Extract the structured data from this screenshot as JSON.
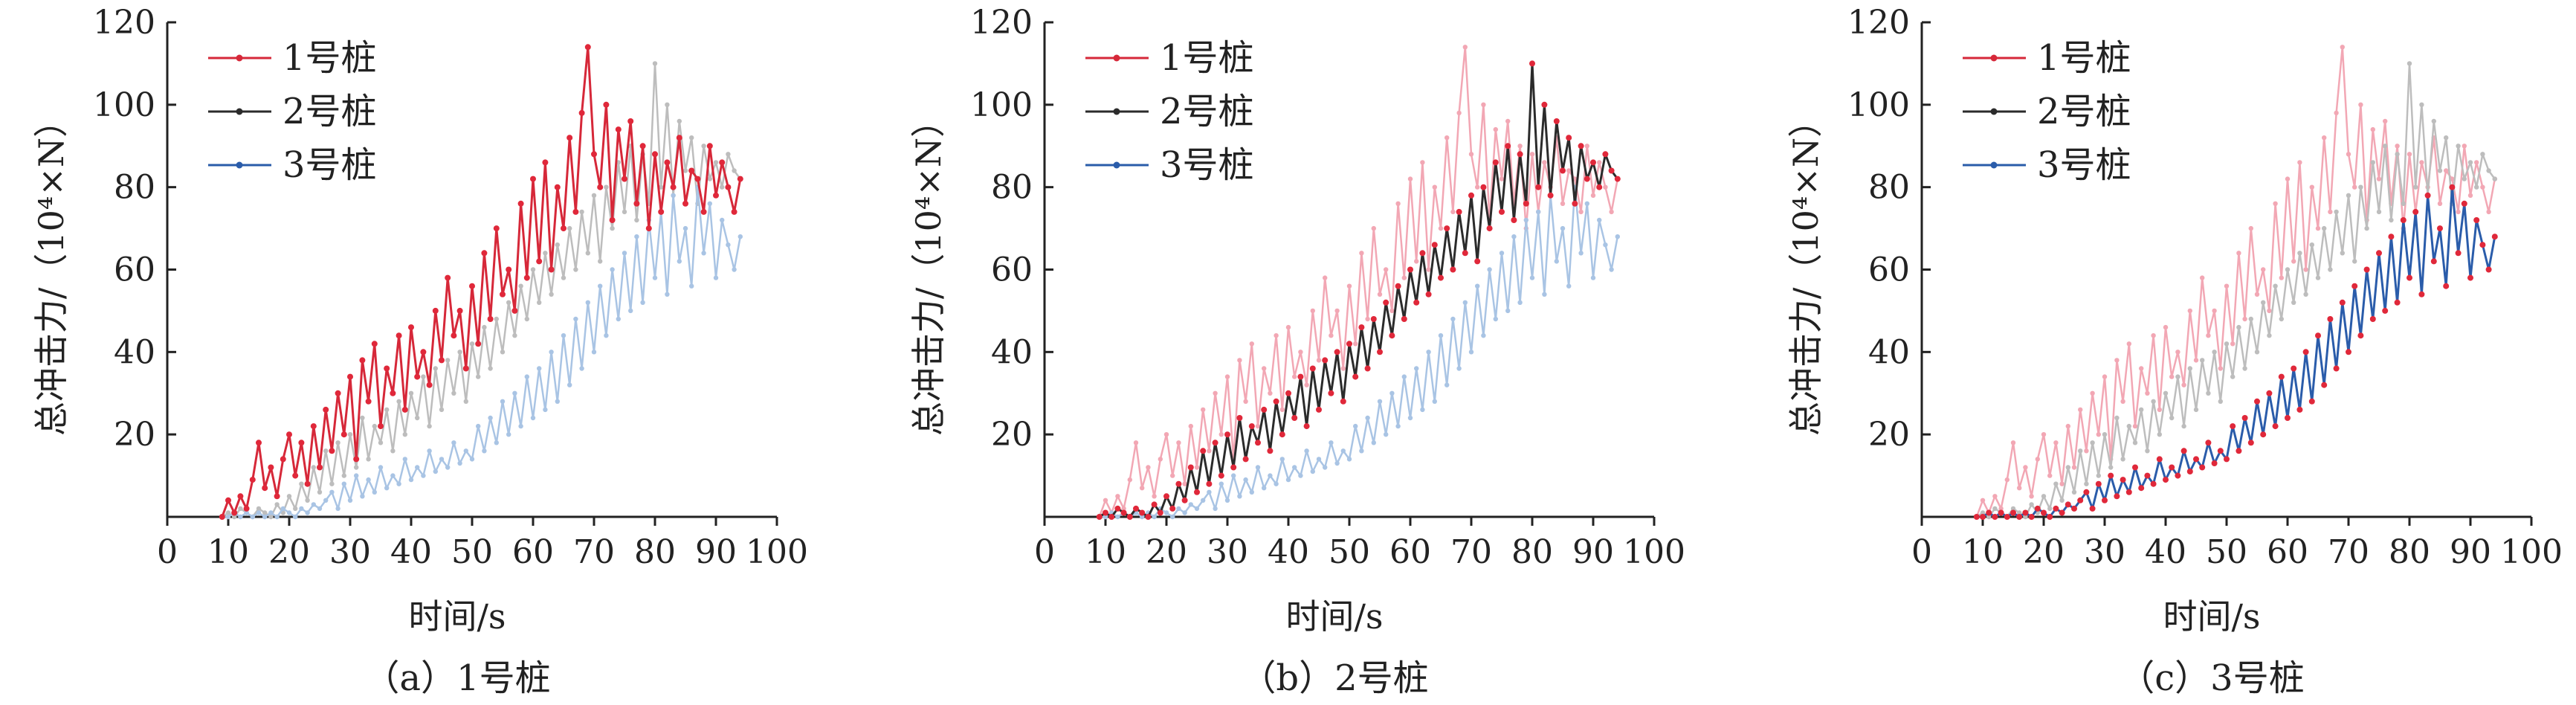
{
  "chart_data": [
    {
      "type": "line",
      "caption": "（a）1号桩",
      "xlabel": "时间/s",
      "ylabel": "总冲击力/（10⁴×N）",
      "xlim": [
        0,
        100
      ],
      "ylim": [
        0,
        120
      ],
      "xticks": [
        "0",
        "10",
        "20",
        "30",
        "40",
        "50",
        "60",
        "70",
        "80",
        "90",
        "100"
      ],
      "yticks": [
        "20",
        "40",
        "60",
        "80",
        "100",
        "120"
      ],
      "highlight": "1号桩",
      "legend": [
        "1号桩",
        "2号桩",
        "3号桩"
      ],
      "legend_position": "top-left"
    },
    {
      "type": "line",
      "caption": "（b）2号桩",
      "xlabel": "时间/s",
      "ylabel": "总冲击力/（10⁴×N）",
      "xlim": [
        0,
        100
      ],
      "ylim": [
        0,
        120
      ],
      "xticks": [
        "0",
        "10",
        "20",
        "30",
        "40",
        "50",
        "60",
        "70",
        "80",
        "90",
        "100"
      ],
      "yticks": [
        "20",
        "40",
        "60",
        "80",
        "100",
        "120"
      ],
      "highlight": "2号桩",
      "legend": [
        "1号桩",
        "2号桩",
        "3号桩"
      ],
      "legend_position": "top-left"
    },
    {
      "type": "line",
      "caption": "（c）3号桩",
      "xlabel": "时间/s",
      "ylabel": "总冲击力/（10⁴×N）",
      "xlim": [
        0,
        100
      ],
      "ylim": [
        0,
        120
      ],
      "xticks": [
        "0",
        "10",
        "20",
        "30",
        "40",
        "50",
        "60",
        "70",
        "80",
        "90",
        "100"
      ],
      "yticks": [
        "20",
        "40",
        "60",
        "80",
        "100",
        "120"
      ],
      "highlight": "3号桩",
      "legend": [
        "1号桩",
        "2号桩",
        "3号桩"
      ],
      "legend_position": "top-left"
    }
  ],
  "series": [
    {
      "name": "1号桩",
      "color": "#d62839",
      "faded_color": "#f2a7b4",
      "x": [
        9,
        10,
        11,
        12,
        13,
        14,
        15,
        16,
        17,
        18,
        19,
        20,
        21,
        22,
        23,
        24,
        25,
        26,
        27,
        28,
        29,
        30,
        31,
        32,
        33,
        34,
        35,
        36,
        37,
        38,
        39,
        40,
        41,
        42,
        43,
        44,
        45,
        46,
        47,
        48,
        49,
        50,
        51,
        52,
        53,
        54,
        55,
        56,
        57,
        58,
        59,
        60,
        61,
        62,
        63,
        64,
        65,
        66,
        67,
        68,
        69,
        70,
        71,
        72,
        73,
        74,
        75,
        76,
        77,
        78,
        79,
        80,
        81,
        82,
        83,
        84,
        85,
        86,
        87,
        88,
        89,
        90,
        91,
        92,
        93,
        94
      ],
      "y": [
        0,
        4,
        1,
        5,
        2,
        9,
        18,
        7,
        12,
        5,
        14,
        20,
        10,
        18,
        8,
        22,
        12,
        26,
        16,
        30,
        20,
        34,
        14,
        38,
        28,
        42,
        22,
        36,
        30,
        44,
        26,
        46,
        34,
        40,
        32,
        50,
        38,
        58,
        44,
        50,
        36,
        56,
        42,
        64,
        48,
        70,
        54,
        60,
        50,
        76,
        58,
        82,
        62,
        86,
        60,
        80,
        70,
        92,
        74,
        98,
        114,
        88,
        80,
        100,
        72,
        94,
        82,
        96,
        76,
        90,
        70,
        88,
        74,
        86,
        80,
        92,
        76,
        84,
        82,
        74,
        90,
        78,
        86,
        80,
        74,
        82
      ]
    },
    {
      "name": "2号桩",
      "color": "#2b2b2b",
      "faded_color": "#bdbdbd",
      "x": [
        9,
        10,
        11,
        12,
        13,
        14,
        15,
        16,
        17,
        18,
        19,
        20,
        21,
        22,
        23,
        24,
        25,
        26,
        27,
        28,
        29,
        30,
        31,
        32,
        33,
        34,
        35,
        36,
        37,
        38,
        39,
        40,
        41,
        42,
        43,
        44,
        45,
        46,
        47,
        48,
        49,
        50,
        51,
        52,
        53,
        54,
        55,
        56,
        57,
        58,
        59,
        60,
        61,
        62,
        63,
        64,
        65,
        66,
        67,
        68,
        69,
        70,
        71,
        72,
        73,
        74,
        75,
        76,
        77,
        78,
        79,
        80,
        81,
        82,
        83,
        84,
        85,
        86,
        87,
        88,
        89,
        90,
        91,
        92,
        93,
        94
      ],
      "y": [
        0,
        1,
        0,
        2,
        1,
        0,
        2,
        1,
        0,
        3,
        1,
        5,
        2,
        8,
        4,
        12,
        6,
        16,
        8,
        18,
        10,
        20,
        12,
        24,
        14,
        22,
        18,
        26,
        16,
        28,
        20,
        30,
        24,
        34,
        22,
        36,
        26,
        38,
        30,
        40,
        28,
        42,
        34,
        46,
        36,
        48,
        40,
        52,
        44,
        56,
        48,
        60,
        52,
        64,
        54,
        66,
        58,
        70,
        60,
        74,
        64,
        78,
        62,
        80,
        70,
        86,
        74,
        90,
        72,
        88,
        76,
        110,
        80,
        100,
        78,
        96,
        84,
        92,
        76,
        90,
        82,
        86,
        80,
        88,
        84,
        82
      ]
    },
    {
      "name": "3号桩",
      "color": "#2a5caa",
      "faded_color": "#a9c4e4",
      "x": [
        9,
        10,
        11,
        12,
        13,
        14,
        15,
        16,
        17,
        18,
        19,
        20,
        21,
        22,
        23,
        24,
        25,
        26,
        27,
        28,
        29,
        30,
        31,
        32,
        33,
        34,
        35,
        36,
        37,
        38,
        39,
        40,
        41,
        42,
        43,
        44,
        45,
        46,
        47,
        48,
        49,
        50,
        51,
        52,
        53,
        54,
        55,
        56,
        57,
        58,
        59,
        60,
        61,
        62,
        63,
        64,
        65,
        66,
        67,
        68,
        69,
        70,
        71,
        72,
        73,
        74,
        75,
        76,
        77,
        78,
        79,
        80,
        81,
        82,
        83,
        84,
        85,
        86,
        87,
        88,
        89,
        90,
        91,
        92,
        93,
        94
      ],
      "y": [
        0,
        0,
        1,
        0,
        1,
        0,
        1,
        0,
        1,
        0,
        2,
        1,
        0,
        2,
        1,
        3,
        2,
        4,
        6,
        2,
        8,
        4,
        10,
        5,
        9,
        6,
        12,
        7,
        10,
        8,
        14,
        9,
        12,
        10,
        16,
        11,
        14,
        12,
        18,
        13,
        16,
        14,
        22,
        16,
        24,
        18,
        28,
        20,
        30,
        22,
        34,
        24,
        36,
        26,
        40,
        28,
        44,
        32,
        48,
        36,
        52,
        40,
        56,
        44,
        60,
        48,
        64,
        50,
        68,
        52,
        72,
        58,
        74,
        54,
        78,
        62,
        70,
        56,
        80,
        64,
        76,
        58,
        72,
        66,
        60,
        68
      ]
    }
  ]
}
